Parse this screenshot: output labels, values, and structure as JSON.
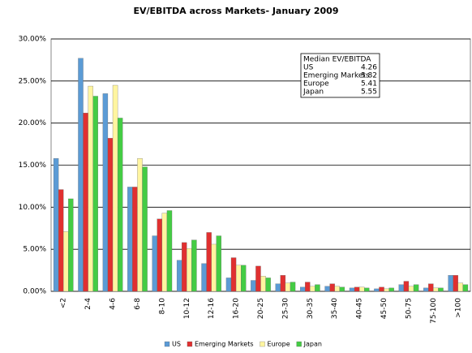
{
  "chart_data": {
    "type": "bar",
    "title": "EV/EBITDA across Markets- January 2009",
    "categories": [
      "<2",
      "2-4",
      "4-6",
      "6-8",
      "8-10",
      "10-12",
      "12-16",
      "16-20",
      "20-25",
      "25-30",
      "30-35",
      "35-40",
      "40-45",
      "45-50",
      "50-75",
      "75-100",
      ">100"
    ],
    "series": [
      {
        "name": "US",
        "color": "#5b9bd5",
        "values": [
          15.8,
          27.7,
          23.5,
          12.4,
          6.6,
          3.7,
          3.3,
          1.6,
          1.3,
          0.9,
          0.5,
          0.6,
          0.4,
          0.3,
          0.8,
          0.4,
          1.9
        ]
      },
      {
        "name": "Emerging Markets",
        "color": "#e03030",
        "values": [
          12.1,
          21.2,
          18.2,
          12.4,
          8.6,
          5.8,
          7.0,
          4.0,
          3.0,
          1.9,
          1.1,
          0.9,
          0.5,
          0.5,
          1.2,
          0.9,
          1.9
        ]
      },
      {
        "name": "Europe",
        "color": "#fff5a0",
        "values": [
          7.1,
          24.4,
          24.5,
          15.8,
          9.3,
          5.1,
          5.6,
          3.1,
          1.8,
          1.0,
          0.6,
          0.6,
          0.5,
          0.3,
          0.6,
          0.4,
          1.0
        ]
      },
      {
        "name": "Japan",
        "color": "#44cc44",
        "values": [
          11.0,
          23.2,
          20.6,
          14.8,
          9.6,
          6.1,
          6.6,
          3.1,
          1.6,
          1.1,
          0.8,
          0.5,
          0.4,
          0.4,
          0.8,
          0.4,
          0.8
        ]
      }
    ],
    "ylim": [
      0,
      30
    ],
    "yticks": [
      {
        "value": 0,
        "label": "0.00%"
      },
      {
        "value": 5,
        "label": "5.00%"
      },
      {
        "value": 10,
        "label": "10.00%"
      },
      {
        "value": 15,
        "label": "15.00%"
      },
      {
        "value": 20,
        "label": "20.00%"
      },
      {
        "value": 25,
        "label": "25.00%"
      },
      {
        "value": 30,
        "label": "30.00%"
      }
    ],
    "grid": true,
    "annotation": {
      "title": "Median EV/EBITDA",
      "rows": [
        {
          "label": "US",
          "value": 4.26
        },
        {
          "label": "Emerging Markets",
          "value": 5.82
        },
        {
          "label": "Europe",
          "value": 5.41
        },
        {
          "label": "Japan",
          "value": 5.55
        }
      ]
    }
  }
}
